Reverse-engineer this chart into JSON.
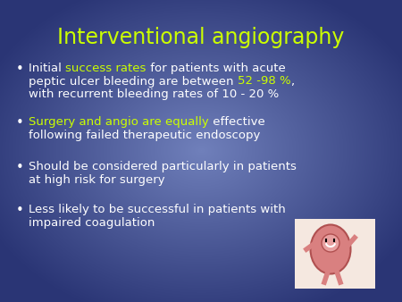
{
  "title": "Interventional angiography",
  "title_color": "#ccff00",
  "bg_color_center": "#7080bb",
  "bg_color_edge": "#2a3575",
  "bullet_color": "#ffffff",
  "text_color_white": "#ffffff",
  "text_color_yellow": "#ccff00",
  "bullet_points": [
    {
      "segments": [
        {
          "text": "Initial ",
          "color": "#ffffff"
        },
        {
          "text": "success rates",
          "color": "#ccff00"
        },
        {
          "text": " for patients with acute\npeptic ulcer bleeding are between ",
          "color": "#ffffff"
        },
        {
          "text": "52 -98 %",
          "color": "#ccff00"
        },
        {
          "text": ",\nwith recurrent bleeding rates of 10 - 20 %",
          "color": "#ffffff"
        }
      ]
    },
    {
      "segments": [
        {
          "text": "Surgery and angio are equally",
          "color": "#ccff00"
        },
        {
          "text": " effective\nfollowing failed therapeutic endoscopy",
          "color": "#ffffff"
        }
      ]
    },
    {
      "segments": [
        {
          "text": "Should be considered particularly in patients\nat high risk for surgery",
          "color": "#ffffff"
        }
      ]
    },
    {
      "segments": [
        {
          "text": "Less likely to be successful in patients with\nimpaired coagulation",
          "color": "#ffffff"
        }
      ]
    }
  ],
  "figsize": [
    4.5,
    3.38
  ],
  "dpi": 100
}
